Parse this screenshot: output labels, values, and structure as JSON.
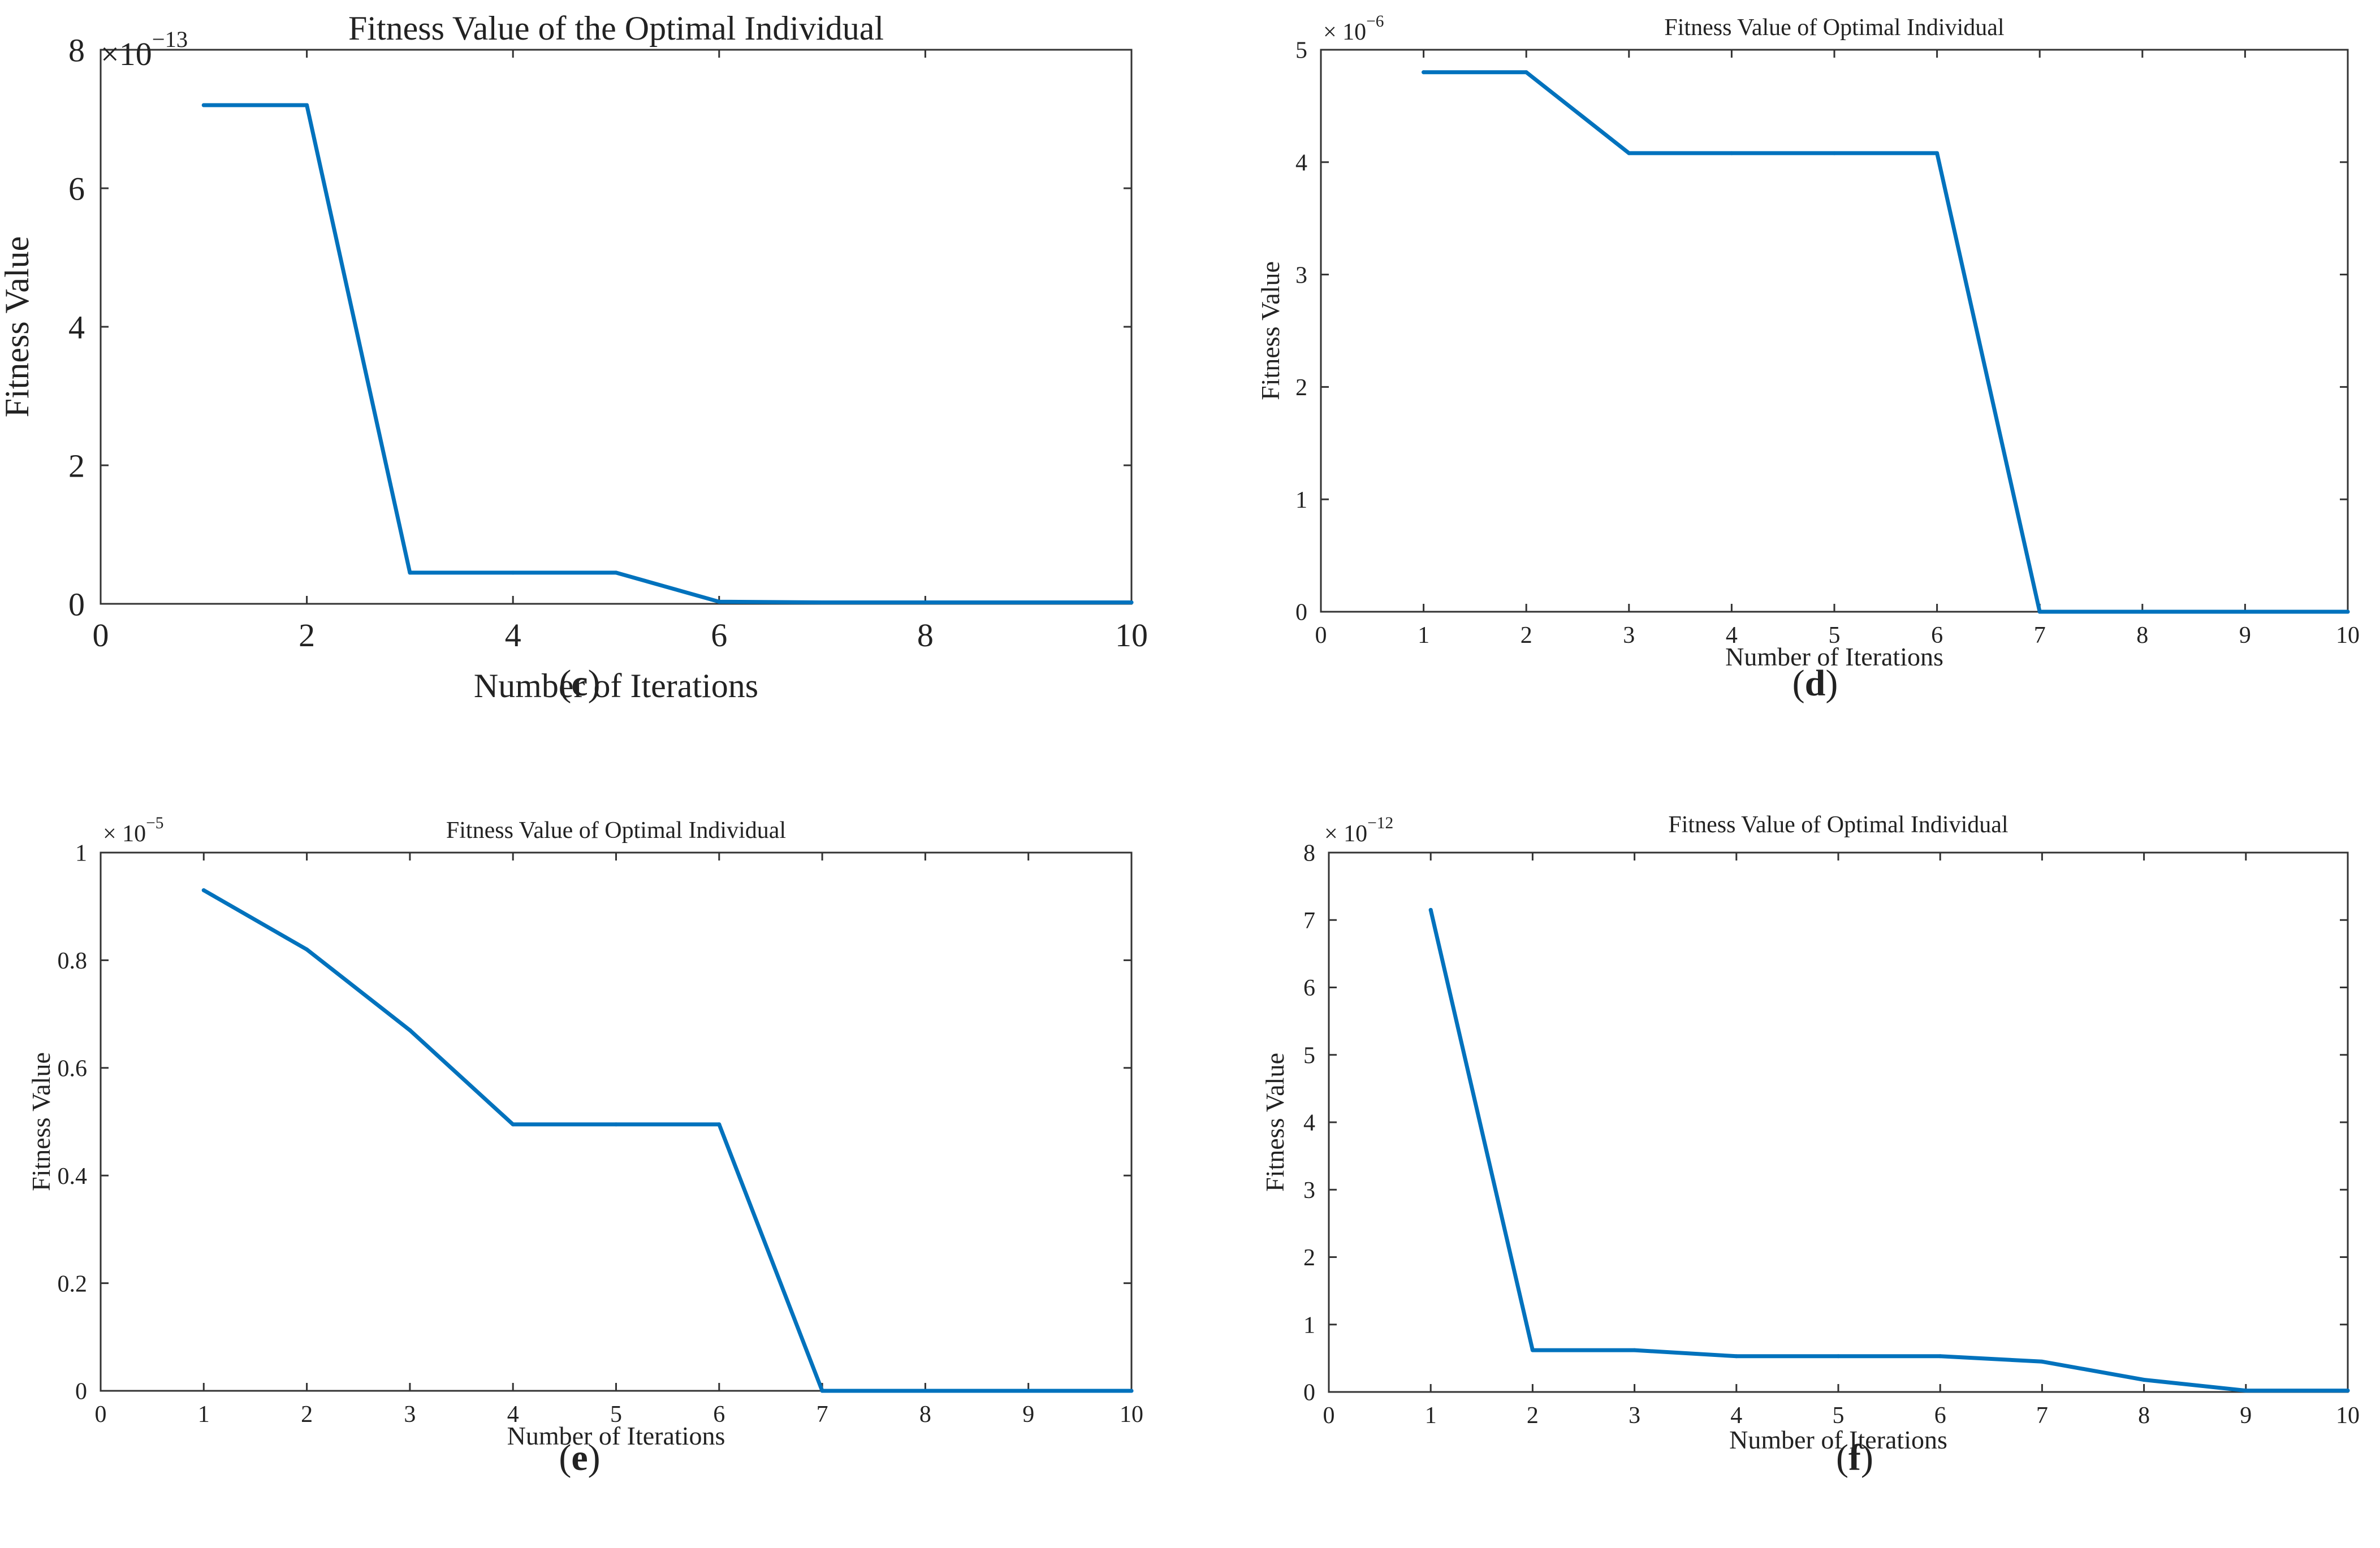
{
  "figure": {
    "series_color": "#0072BD",
    "axis_color": "#333333"
  },
  "chart_data": [
    {
      "id": "c",
      "type": "line",
      "title": "Fitness Value of the Optimal Individual",
      "xlabel": "Number of Iterations",
      "ylabel": "Fitness Value",
      "exponent_base": "×10",
      "exponent_power": "−13",
      "xlim": [
        0,
        10
      ],
      "ylim": [
        0,
        8
      ],
      "xticks": [
        0,
        2,
        4,
        6,
        8,
        10
      ],
      "yticks": [
        0,
        2,
        4,
        6,
        8
      ],
      "caption": "c",
      "series": [
        {
          "name": "Fitness",
          "x": [
            1,
            2,
            3,
            4,
            5,
            6,
            7,
            8,
            9,
            10
          ],
          "y": [
            7.2,
            7.2,
            0.45,
            0.45,
            0.45,
            0.03,
            0.02,
            0.02,
            0.02,
            0.02
          ]
        }
      ]
    },
    {
      "id": "d",
      "type": "line",
      "title": "Fitness Value of Optimal Individual",
      "xlabel": "Number of Iterations",
      "ylabel": "Fitness Value",
      "exponent_base": "× 10",
      "exponent_power": "−6",
      "xlim": [
        0,
        10
      ],
      "ylim": [
        0,
        5
      ],
      "xticks": [
        0,
        1,
        2,
        3,
        4,
        5,
        6,
        7,
        8,
        9,
        10
      ],
      "yticks": [
        0,
        1,
        2,
        3,
        4,
        5
      ],
      "caption": "d",
      "series": [
        {
          "name": "Fitness",
          "x": [
            1,
            2,
            3,
            4,
            5,
            6,
            7,
            8,
            9,
            10
          ],
          "y": [
            4.8,
            4.8,
            4.08,
            4.08,
            4.08,
            4.08,
            0.0,
            0.0,
            0.0,
            0.0
          ]
        }
      ]
    },
    {
      "id": "e",
      "type": "line",
      "title": "Fitness Value of Optimal Individual",
      "xlabel": "Number of Iterations",
      "ylabel": "Fitness Value",
      "exponent_base": "× 10",
      "exponent_power": "−5",
      "xlim": [
        0,
        10
      ],
      "ylim": [
        0,
        1
      ],
      "xticks": [
        0,
        1,
        2,
        3,
        4,
        5,
        6,
        7,
        8,
        9,
        10
      ],
      "yticks": [
        0,
        0.2,
        0.4,
        0.6,
        0.8,
        1
      ],
      "caption": "e",
      "series": [
        {
          "name": "Fitness",
          "x": [
            1,
            2,
            3,
            4,
            5,
            6,
            7,
            8,
            9,
            10
          ],
          "y": [
            0.93,
            0.82,
            0.67,
            0.495,
            0.495,
            0.495,
            0.0,
            0.0,
            0.0,
            0.0
          ]
        }
      ]
    },
    {
      "id": "f",
      "type": "line",
      "title": "Fitness Value of Optimal Individual",
      "xlabel": "Number of Iterations",
      "ylabel": "Fitness Value",
      "exponent_base": "× 10",
      "exponent_power": "−12",
      "xlim": [
        0,
        10
      ],
      "ylim": [
        0,
        8
      ],
      "xticks": [
        0,
        1,
        2,
        3,
        4,
        5,
        6,
        7,
        8,
        9,
        10
      ],
      "yticks": [
        0,
        1,
        2,
        3,
        4,
        5,
        6,
        7,
        8
      ],
      "caption": "f",
      "series": [
        {
          "name": "Fitness",
          "x": [
            1,
            2,
            3,
            4,
            5,
            6,
            7,
            8,
            9,
            10
          ],
          "y": [
            7.15,
            0.62,
            0.62,
            0.53,
            0.53,
            0.53,
            0.45,
            0.18,
            0.02,
            0.02
          ]
        }
      ]
    }
  ]
}
